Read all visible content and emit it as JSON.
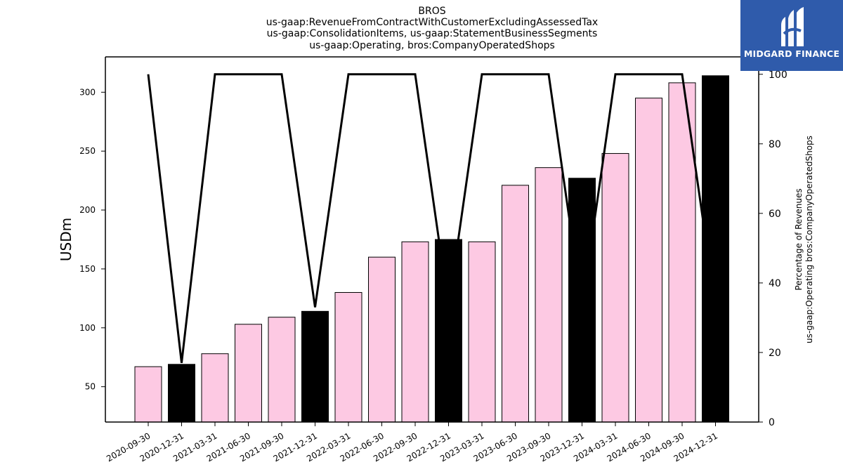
{
  "title_lines": [
    "BROS",
    "us-gaap:RevenueFromContractWithCustomerExcludingAssessedTax",
    "us-gaap:ConsolidationItems, us-gaap:StatementBusinessSegments",
    "us-gaap:Operating, bros:CompanyOperatedShops"
  ],
  "logo": {
    "text": "MIDGARD FINANCE",
    "background": "#2f5bab"
  },
  "chart_data": {
    "type": "bar",
    "categories": [
      "2020-09-30",
      "2020-12-31",
      "2021-03-31",
      "2021-06-30",
      "2021-09-30",
      "2021-12-31",
      "2022-03-31",
      "2022-06-30",
      "2022-09-30",
      "2022-12-31",
      "2023-03-31",
      "2023-06-30",
      "2023-09-30",
      "2023-12-31",
      "2024-03-31",
      "2024-06-30",
      "2024-09-30",
      "2024-12-31"
    ],
    "values": [
      67,
      69,
      78,
      103,
      109,
      114,
      130,
      160,
      173,
      175,
      173,
      221,
      236,
      227,
      248,
      295,
      308,
      314
    ],
    "bar_colors": [
      "#fdc9e3",
      "#000000",
      "#fdc9e3",
      "#fdc9e3",
      "#fdc9e3",
      "#000000",
      "#fdc9e3",
      "#fdc9e3",
      "#fdc9e3",
      "#000000",
      "#fdc9e3",
      "#fdc9e3",
      "#fdc9e3",
      "#000000",
      "#fdc9e3",
      "#fdc9e3",
      "#fdc9e3",
      "#000000"
    ],
    "ylabel": "USDm",
    "ylim": [
      20,
      330
    ],
    "yticks": [
      50,
      100,
      150,
      200,
      250,
      300
    ],
    "line_series": {
      "values": [
        100,
        17,
        100,
        100,
        100,
        33,
        100,
        100,
        100,
        33,
        100,
        100,
        100,
        33,
        100,
        100,
        100,
        33
      ],
      "color": "#000000"
    },
    "y2label_lines": [
      "Percentage of Revenues",
      "us-gaap:Operating bros:CompanyOperatedShops"
    ],
    "y2lim": [
      0,
      105
    ],
    "y2ticks": [
      0,
      20,
      40,
      60,
      80,
      100
    ],
    "grid": false
  }
}
